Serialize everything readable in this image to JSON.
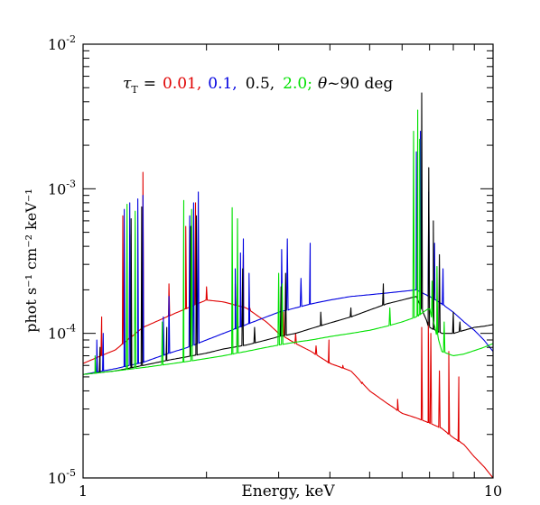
{
  "chart_data": {
    "type": "line",
    "title": "",
    "xlabel": "Energy, keV",
    "ylabel": "phot s⁻¹ cm⁻² keV⁻¹",
    "x_scale": "log",
    "y_scale": "log",
    "xlim": [
      1,
      10
    ],
    "ylim": [
      1e-05,
      0.01
    ],
    "grid": false,
    "x_ticks": [
      {
        "value": 1,
        "label": "1"
      },
      {
        "value": 10,
        "label": "10"
      }
    ],
    "y_ticks": [
      {
        "value": 0.01,
        "base": "10",
        "exp": "-2"
      },
      {
        "value": 0.001,
        "base": "10",
        "exp": "-3"
      },
      {
        "value": 0.0001,
        "base": "10",
        "exp": "-4"
      },
      {
        "value": 1e-05,
        "base": "10",
        "exp": "-5"
      }
    ],
    "annotation": {
      "tau_symbol": "τ",
      "tau_sub": "T",
      "equals": "=",
      "items": [
        {
          "text": "0.01,",
          "color": "#e00000"
        },
        {
          "text": "0.1,",
          "color": "#0000e0"
        },
        {
          "text": "0.5,",
          "color": "#000000"
        },
        {
          "text": "2.0;",
          "color": "#00e000"
        }
      ],
      "theta_symbol": "θ",
      "theta_text": "~90 deg"
    },
    "series": [
      {
        "color": "#e00000",
        "points": [
          [
            1.0,
            6.2e-05
          ],
          [
            1.2,
            7.7e-05
          ],
          [
            1.4,
            0.00011
          ],
          [
            1.6,
            0.00013
          ],
          [
            1.8,
            0.00015
          ],
          [
            2.0,
            0.00017
          ],
          [
            2.2,
            0.000165
          ],
          [
            2.5,
            0.00015
          ],
          [
            2.8,
            0.00012
          ],
          [
            3.0,
            0.0001
          ],
          [
            3.3,
            8.5e-05
          ],
          [
            3.6,
            7.5e-05
          ],
          [
            4.0,
            6.2e-05
          ],
          [
            4.5,
            5.5e-05
          ],
          [
            5.0,
            4e-05
          ],
          [
            5.5,
            3.3e-05
          ],
          [
            6.0,
            2.8e-05
          ],
          [
            6.5,
            2.6e-05
          ],
          [
            7.0,
            2.4e-05
          ],
          [
            7.5,
            2.2e-05
          ],
          [
            8.0,
            1.9e-05
          ],
          [
            8.5,
            1.7e-05
          ],
          [
            9.0,
            1.4e-05
          ],
          [
            9.5,
            1.2e-05
          ],
          [
            10.0,
            1e-05
          ]
        ],
        "lines": [
          [
            1.11,
            0.00013
          ],
          [
            1.25,
            0.00065
          ],
          [
            1.3,
            0.00048
          ],
          [
            1.4,
            0.0013
          ],
          [
            1.62,
            0.00022
          ],
          [
            1.78,
            0.00055
          ],
          [
            1.88,
            0.0008
          ],
          [
            2.0,
            0.00021
          ],
          [
            2.35,
            0.00022
          ],
          [
            2.46,
            0.00035
          ],
          [
            2.55,
            0.00015
          ],
          [
            3.08,
            0.00014
          ],
          [
            3.3,
            0.0001
          ],
          [
            3.7,
            8.2e-05
          ],
          [
            3.98,
            9e-05
          ],
          [
            4.3,
            6e-05
          ],
          [
            4.78,
            4.5e-05
          ],
          [
            5.85,
            3.5e-05
          ],
          [
            6.7,
            0.00011
          ],
          [
            6.95,
            0.00012
          ],
          [
            7.05,
            0.0001
          ],
          [
            7.4,
            5.5e-05
          ],
          [
            7.8,
            7.5e-05
          ],
          [
            8.25,
            5e-05
          ]
        ]
      },
      {
        "color": "#0000e0",
        "points": [
          [
            1.0,
            5.2e-05
          ],
          [
            1.2,
            5.7e-05
          ],
          [
            1.4,
            6.3e-05
          ],
          [
            1.6,
            7.2e-05
          ],
          [
            1.8,
            8e-05
          ],
          [
            2.0,
            9e-05
          ],
          [
            2.2,
            0.0001
          ],
          [
            2.5,
            0.000115
          ],
          [
            2.8,
            0.00013
          ],
          [
            3.0,
            0.00014
          ],
          [
            3.3,
            0.00015
          ],
          [
            3.6,
            0.00016
          ],
          [
            4.0,
            0.00017
          ],
          [
            4.5,
            0.00018
          ],
          [
            5.0,
            0.000185
          ],
          [
            5.5,
            0.00019
          ],
          [
            6.0,
            0.000195
          ],
          [
            6.5,
            0.0002
          ],
          [
            7.0,
            0.00018
          ],
          [
            7.5,
            0.00016
          ],
          [
            8.0,
            0.00014
          ],
          [
            8.5,
            0.00012
          ],
          [
            9.0,
            0.000105
          ],
          [
            9.5,
            9e-05
          ],
          [
            10.0,
            7.5e-05
          ]
        ],
        "lines": [
          [
            1.08,
            9e-05
          ],
          [
            1.12,
            0.0001
          ],
          [
            1.26,
            0.00072
          ],
          [
            1.3,
            0.0008
          ],
          [
            1.36,
            0.00085
          ],
          [
            1.4,
            0.0009
          ],
          [
            1.57,
            0.00013
          ],
          [
            1.62,
            0.00018
          ],
          [
            1.82,
            0.00065
          ],
          [
            1.86,
            0.0008
          ],
          [
            1.91,
            0.00095
          ],
          [
            2.35,
            0.00028
          ],
          [
            2.42,
            0.00036
          ],
          [
            2.46,
            0.00045
          ],
          [
            2.54,
            0.00026
          ],
          [
            3.05,
            0.00038
          ],
          [
            3.15,
            0.00045
          ],
          [
            3.4,
            0.00024
          ],
          [
            3.58,
            0.00042
          ],
          [
            6.5,
            0.0018
          ],
          [
            6.65,
            0.0025
          ],
          [
            6.97,
            0.00095
          ],
          [
            7.2,
            0.00042
          ],
          [
            7.55,
            0.00028
          ]
        ]
      },
      {
        "color": "#000000",
        "points": [
          [
            1.0,
            5.2e-05
          ],
          [
            1.2,
            5.5e-05
          ],
          [
            1.4,
            6e-05
          ],
          [
            1.6,
            6.5e-05
          ],
          [
            1.8,
            6.9e-05
          ],
          [
            2.0,
            7.3e-05
          ],
          [
            2.2,
            7.8e-05
          ],
          [
            2.5,
            8.3e-05
          ],
          [
            2.8,
            9e-05
          ],
          [
            3.0,
            9.5e-05
          ],
          [
            3.3,
            0.0001
          ],
          [
            3.6,
            0.000108
          ],
          [
            4.0,
            0.000118
          ],
          [
            4.5,
            0.00013
          ],
          [
            5.0,
            0.000145
          ],
          [
            5.5,
            0.00016
          ],
          [
            6.0,
            0.00017
          ],
          [
            6.5,
            0.00018
          ],
          [
            7.0,
            0.00011
          ],
          [
            7.5,
            0.0001
          ],
          [
            8.0,
            0.0001
          ],
          [
            8.5,
            0.000105
          ],
          [
            9.0,
            0.00011
          ],
          [
            9.5,
            0.000112
          ],
          [
            10.0,
            0.000115
          ]
        ],
        "lines": [
          [
            1.1,
            8e-05
          ],
          [
            1.31,
            0.00062
          ],
          [
            1.39,
            0.00075
          ],
          [
            1.6,
            0.00011
          ],
          [
            1.83,
            0.00055
          ],
          [
            1.89,
            0.00065
          ],
          [
            2.38,
            0.00021
          ],
          [
            2.45,
            0.00028
          ],
          [
            2.62,
            0.00011
          ],
          [
            3.04,
            0.00021
          ],
          [
            3.12,
            0.00026
          ],
          [
            3.8,
            0.00014
          ],
          [
            4.5,
            0.00015
          ],
          [
            5.4,
            0.00022
          ],
          [
            6.7,
            0.0046
          ],
          [
            6.97,
            0.0014
          ],
          [
            7.15,
            0.0006
          ],
          [
            7.4,
            0.00035
          ],
          [
            8.0,
            0.00014
          ],
          [
            8.3,
            0.00012
          ]
        ]
      },
      {
        "color": "#00e000",
        "points": [
          [
            1.0,
            5.2e-05
          ],
          [
            1.2,
            5.5e-05
          ],
          [
            1.4,
            5.8e-05
          ],
          [
            1.6,
            6.1e-05
          ],
          [
            1.8,
            6.4e-05
          ],
          [
            2.0,
            6.7e-05
          ],
          [
            2.2,
            7e-05
          ],
          [
            2.5,
            7.5e-05
          ],
          [
            2.8,
            8e-05
          ],
          [
            3.0,
            8.3e-05
          ],
          [
            3.3,
            8.7e-05
          ],
          [
            3.6,
            9e-05
          ],
          [
            4.0,
            9.5e-05
          ],
          [
            4.5,
            0.0001
          ],
          [
            5.0,
            0.000105
          ],
          [
            5.5,
            0.000112
          ],
          [
            6.0,
            0.00012
          ],
          [
            6.5,
            0.00013
          ],
          [
            7.0,
            0.00015
          ],
          [
            7.5,
            7.5e-05
          ],
          [
            8.0,
            7e-05
          ],
          [
            8.5,
            7.2e-05
          ],
          [
            9.0,
            7.6e-05
          ],
          [
            9.5,
            8e-05
          ],
          [
            10.0,
            8.5e-05
          ]
        ],
        "lines": [
          [
            1.07,
            7e-05
          ],
          [
            1.28,
            0.00078
          ],
          [
            1.34,
            0.0007
          ],
          [
            1.56,
            0.00012
          ],
          [
            1.76,
            0.00083
          ],
          [
            1.84,
            0.00072
          ],
          [
            2.31,
            0.00074
          ],
          [
            2.38,
            0.00062
          ],
          [
            3.0,
            0.00026
          ],
          [
            3.06,
            0.00022
          ],
          [
            5.6,
            0.00015
          ],
          [
            6.4,
            0.0025
          ],
          [
            6.55,
            0.0035
          ],
          [
            6.62,
            0.0022
          ],
          [
            7.1,
            0.00023
          ],
          [
            7.3,
            0.00029
          ],
          [
            7.6,
            0.00012
          ]
        ]
      }
    ]
  }
}
